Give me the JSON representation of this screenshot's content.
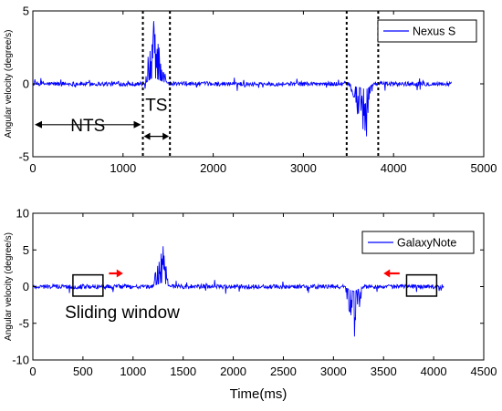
{
  "chart_data": [
    {
      "type": "line",
      "ylabel": "Angular velocity (degree/s)",
      "xlabel": "",
      "xlim": [
        0,
        5000
      ],
      "ylim": [
        -5,
        5
      ],
      "xticks": [
        0,
        1000,
        2000,
        3000,
        4000,
        5000
      ],
      "yticks": [
        -5,
        0,
        5
      ],
      "x_tick_labels": [
        "0",
        "1000",
        "2000",
        "3000",
        "4000",
        "5000"
      ],
      "y_tick_labels": [
        "-5",
        "0",
        "5"
      ],
      "legend": "top-right",
      "color": "#0000ff",
      "series": [
        {
          "name": "Nexus S",
          "x_range": [
            0,
            4650
          ],
          "baseline_noise": 0.15,
          "bursts": [
            {
              "x_start": 1250,
              "x_end": 1500,
              "peak": 4.3,
              "peak_x": 1340,
              "direction": "positive"
            },
            {
              "x_start": 3520,
              "x_end": 3780,
              "peak": -3.6,
              "peak_x": 3700,
              "direction": "negative"
            }
          ]
        }
      ],
      "annotations": {
        "region_boundaries_x": [
          1220,
          1520,
          3480,
          3830
        ],
        "nts_label": "NTS",
        "ts_label": "TS",
        "nts_arrow_x": [
          0,
          1220
        ],
        "ts_arrow_x": [
          1220,
          1520
        ],
        "arrow_y": -2.8
      }
    },
    {
      "type": "line",
      "ylabel": "Angular velocity (degree/s)",
      "xlabel": "Time(ms)",
      "xlim": [
        0,
        4500
      ],
      "ylim": [
        -10,
        10
      ],
      "xticks": [
        0,
        500,
        1000,
        1500,
        2000,
        2500,
        3000,
        3500,
        4000,
        4500
      ],
      "yticks": [
        -10,
        -5,
        0,
        5,
        10
      ],
      "x_tick_labels": [
        "0",
        "500",
        "1000",
        "1500",
        "2000",
        "2500",
        "3000",
        "3500",
        "4000",
        "4500"
      ],
      "y_tick_labels": [
        "-10",
        "-5",
        "0",
        "5",
        "10"
      ],
      "legend": "top-right",
      "color": "#0000ff",
      "series": [
        {
          "name": "GalaxyNote",
          "x_range": [
            0,
            4100
          ],
          "baseline_noise": 0.3,
          "bursts": [
            {
              "x_start": 1200,
              "x_end": 1370,
              "peak": 5.5,
              "peak_x": 1300,
              "direction": "positive"
            },
            {
              "x_start": 3120,
              "x_end": 3300,
              "peak": -6.8,
              "peak_x": 3210,
              "direction": "negative"
            }
          ]
        }
      ],
      "annotations": {
        "window_label": "Sliding window",
        "windows": [
          {
            "x_start": 400,
            "x_end": 700,
            "y_low": -1.3,
            "y_high": 1.6
          },
          {
            "x_start": 3730,
            "x_end": 4030,
            "y_low": -1.3,
            "y_high": 1.6
          }
        ],
        "arrows": [
          {
            "direction": "right",
            "x_from": 760,
            "x_to": 900,
            "y": 1.8
          },
          {
            "direction": "left",
            "x_from": 3660,
            "x_to": 3500,
            "y": 1.8
          }
        ],
        "arrow_color": "#ff0000"
      }
    }
  ]
}
